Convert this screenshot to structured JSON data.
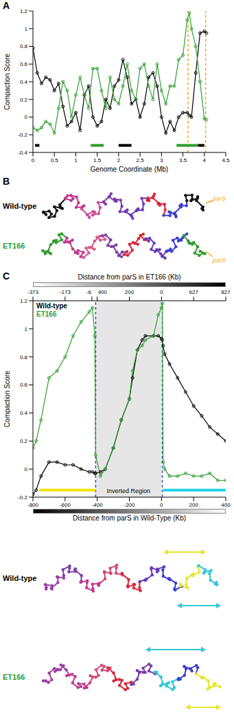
{
  "panel_labels": [
    "A",
    "B",
    "C"
  ],
  "chart_data": [
    {
      "type": "line",
      "x_label": "Genome Coordinate (Mb)",
      "y_label": "Compaction Score",
      "x": [
        0,
        0.1,
        0.2,
        0.3,
        0.4,
        0.5,
        0.6,
        0.7,
        0.8,
        0.9,
        1.0,
        1.1,
        1.2,
        1.3,
        1.4,
        1.5,
        1.6,
        1.7,
        1.8,
        1.9,
        2.0,
        2.1,
        2.2,
        2.3,
        2.4,
        2.5,
        2.6,
        2.7,
        2.8,
        2.9,
        3.0,
        3.1,
        3.2,
        3.3,
        3.4,
        3.5,
        3.6,
        3.65,
        3.7,
        3.8,
        3.9,
        4.0,
        4.05
      ],
      "series": [
        {
          "color": "#000000",
          "marker": "circle",
          "values": [
            0.78,
            0.5,
            0.38,
            0.45,
            0.42,
            0.3,
            0.38,
            0.12,
            -0.1,
            -0.05,
            0.05,
            -0.15,
            0.25,
            0.35,
            0.0,
            -0.1,
            -0.05,
            0.2,
            0.1,
            0.35,
            0.42,
            0.65,
            0.45,
            0.15,
            0.2,
            0.0,
            0.15,
            0.45,
            0.5,
            0.35,
            0.0,
            -0.18,
            -0.05,
            -0.15,
            0.0,
            0.05,
            0.05,
            0.02,
            0.0,
            0.5,
            0.95,
            0.97,
            0.95
          ]
        },
        {
          "color": "#2e9e2e",
          "marker": "circle",
          "values": [
            -0.12,
            -0.15,
            -0.12,
            -0.05,
            -0.08,
            -0.18,
            0.1,
            0.4,
            0.3,
            0.0,
            0.25,
            0.45,
            0.25,
            0.1,
            0.55,
            0.55,
            0.3,
            0.1,
            0.45,
            0.2,
            0.15,
            0.35,
            0.6,
            0.3,
            0.2,
            0.55,
            0.6,
            0.35,
            0.2,
            0.6,
            0.3,
            0.15,
            0.35,
            0.35,
            0.65,
            0.7,
            1.1,
            1.18,
            1.0,
            0.8,
            0.4,
            -0.02,
            -0.03
          ]
        }
      ],
      "xlim": [
        0,
        4.5
      ],
      "xticks": [
        0,
        0.5,
        1,
        1.5,
        2,
        2.5,
        3,
        3.5,
        4,
        4.5
      ],
      "ylim": [
        -0.4,
        1.2
      ],
      "yticks": [
        -0.4,
        -0.2,
        0,
        0.2,
        0.4,
        0.6,
        0.8,
        1,
        1.2
      ],
      "region_bars": [
        {
          "x": [
            0.05,
            0.15
          ],
          "y": -0.32,
          "color": "#000000"
        },
        {
          "x": [
            1.35,
            1.65
          ],
          "y": -0.32,
          "color": "#2e9e2e"
        },
        {
          "x": [
            2.0,
            2.3
          ],
          "y": -0.32,
          "color": "#000000"
        },
        {
          "x": [
            3.35,
            3.85
          ],
          "y": -0.32,
          "color": "#2e9e2e"
        },
        {
          "x": [
            3.85,
            4.0
          ],
          "y": -0.32,
          "color": "#000000"
        }
      ],
      "vlines": [
        {
          "x": 3.62,
          "color": "#f5a623",
          "line_style": "dashed"
        },
        {
          "x": 4.03,
          "color": "#f5a623",
          "line_style": "dashed"
        }
      ]
    },
    {
      "type": "line",
      "x_label": "Distance from parS in Wild-Type (Kb)",
      "x2_label": "Distance from parS in ET166 (Kb)",
      "y_label": "Compaction Score",
      "x": [
        -800,
        -780,
        -750,
        -700,
        -650,
        -600,
        -550,
        -500,
        -450,
        -430,
        -415,
        -410,
        -380,
        -350,
        -300,
        -250,
        -200,
        -180,
        -150,
        -120,
        -100,
        -50,
        -20,
        0,
        5,
        10,
        20,
        50,
        100,
        150,
        200,
        250,
        300,
        350,
        400
      ],
      "series": [
        {
          "name": "Wild-type",
          "color": "#000000",
          "marker": "circle",
          "values": [
            -0.18,
            -0.15,
            -0.05,
            0.05,
            0.05,
            0.03,
            0.03,
            0.0,
            -0.02,
            -0.02,
            -0.03,
            -0.03,
            -0.02,
            0.0,
            0.15,
            0.35,
            0.5,
            0.65,
            0.85,
            0.92,
            0.95,
            0.95,
            0.95,
            0.93,
            0.92,
            0.88,
            0.82,
            0.75,
            0.65,
            0.55,
            0.45,
            0.38,
            0.3,
            0.25,
            0.2
          ]
        },
        {
          "name": "ET166",
          "color": "#2e9e2e",
          "marker": "circle",
          "values": [
            0.15,
            0.2,
            0.35,
            0.65,
            0.7,
            0.8,
            0.95,
            1.05,
            1.12,
            1.15,
            0.95,
            0.1,
            -0.05,
            0.0,
            0.15,
            0.35,
            0.5,
            0.7,
            0.85,
            0.88,
            0.92,
            0.95,
            1.1,
            1.15,
            1.18,
            0.05,
            0.0,
            -0.05,
            -0.05,
            -0.03,
            -0.05,
            -0.05,
            -0.03,
            -0.08,
            -0.08
          ]
        }
      ],
      "xlim": [
        -800,
        400
      ],
      "xticks": [
        -800,
        -600,
        -400,
        -200,
        0,
        200,
        400
      ],
      "x2lim": [
        -800,
        400
      ],
      "x2ticks": [
        {
          "value": -800,
          "label": "-373"
        },
        {
          "value": -600,
          "label": "-173"
        },
        {
          "value": -433,
          "label": "-6"
        },
        {
          "value": -400,
          "label": "400"
        },
        {
          "value": -200,
          "label": "200"
        },
        {
          "value": 0,
          "label": "0"
        },
        {
          "value": 200,
          "label": "627"
        },
        {
          "value": 400,
          "label": "827"
        }
      ],
      "ylim": [
        -0.2,
        1.2
      ],
      "yticks": [
        -0.2,
        0,
        0.2,
        0.4,
        0.6,
        0.8,
        1,
        1.2
      ],
      "legend": "upper left",
      "shaded_region": {
        "x": [
          -410,
          0
        ],
        "label": "Inverted Region"
      },
      "vlines": [
        {
          "x": -410,
          "color": "#3355cc",
          "line_style": "dashed"
        },
        {
          "x": 5,
          "color": "#3355cc",
          "line_style": "dashed"
        }
      ],
      "region_bars": [
        {
          "x": [
            -760,
            -410
          ],
          "y": -0.15,
          "color": "#f2e600"
        },
        {
          "x": [
            10,
            400
          ],
          "y": -0.15,
          "color": "#22d3e6"
        }
      ]
    }
  ],
  "structures": [
    {
      "labels": [
        "Wild-type",
        "ET166"
      ],
      "annotation": "parS"
    },
    {
      "labels": [
        "Wild-type",
        "ET166"
      ]
    }
  ]
}
